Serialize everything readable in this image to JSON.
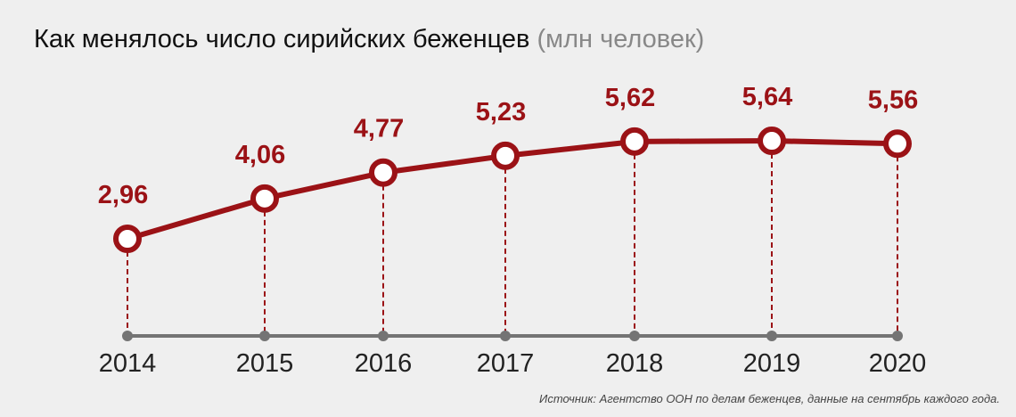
{
  "chart_data": {
    "type": "line",
    "title": "Как менялось число сирийских беженцев",
    "unit": "(млн человек)",
    "categories": [
      "2014",
      "2015",
      "2016",
      "2017",
      "2018",
      "2019",
      "2020"
    ],
    "values": [
      2.96,
      4.06,
      4.77,
      5.23,
      5.62,
      5.64,
      5.56
    ],
    "data_labels": [
      "2,96",
      "4,06",
      "4,77",
      "5,23",
      "5,62",
      "5,64",
      "5,56"
    ],
    "grid": false,
    "legend": "none",
    "source": "Источник: Агентство ООН по делам беженцев, данные на сентябрь каждого года."
  },
  "colors": {
    "line": "#9b1216",
    "axis": "#747474",
    "background": "#efefef",
    "marker_fill": "#ffffff"
  }
}
